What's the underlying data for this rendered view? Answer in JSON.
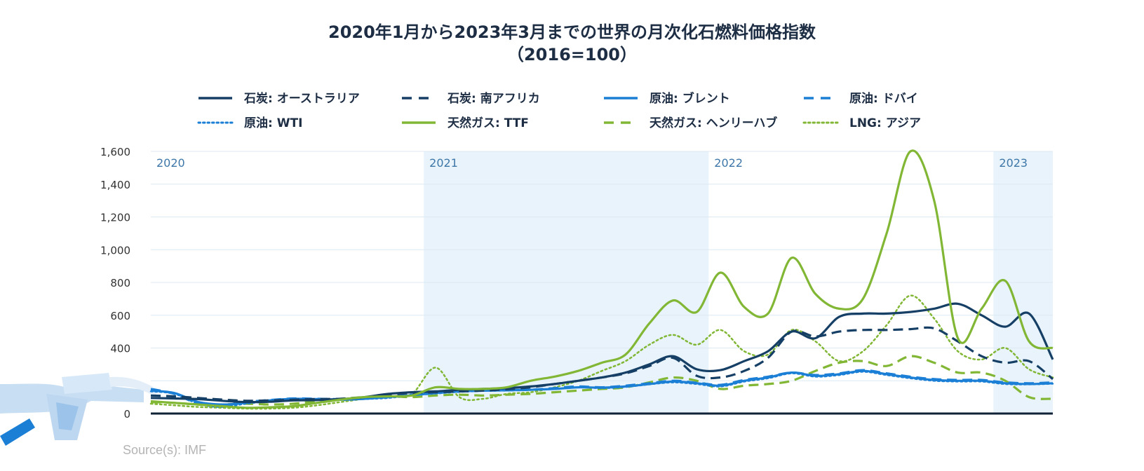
{
  "chart_data": {
    "type": "line",
    "title": "2020年1月から2023年3月までの世界の月次化石燃料価格指数",
    "subtitle": "（2016=100）",
    "source": "Source(s): IMF",
    "xlabel": "",
    "ylabel": "",
    "ylim": [
      0,
      1600
    ],
    "yticks": [
      0,
      200,
      400,
      600,
      800,
      1000,
      1200,
      1400,
      1600
    ],
    "ytick_labels": [
      "0",
      "",
      "400",
      "600",
      "800",
      "1,000",
      "1,200",
      "1,400",
      "1,600"
    ],
    "grid": true,
    "legend_position": "top",
    "year_bands": [
      {
        "label": "2020",
        "start": 0,
        "end": 12,
        "shaded": false
      },
      {
        "label": "2021",
        "start": 12,
        "end": 24,
        "shaded": true
      },
      {
        "label": "2022",
        "start": 24,
        "end": 36,
        "shaded": false
      },
      {
        "label": "2023",
        "start": 36,
        "end": 39,
        "shaded": true
      }
    ],
    "x": [
      0,
      1,
      2,
      3,
      4,
      5,
      6,
      7,
      8,
      9,
      10,
      11,
      12,
      13,
      14,
      15,
      16,
      17,
      18,
      19,
      20,
      21,
      22,
      23,
      24,
      25,
      26,
      27,
      28,
      29,
      30,
      31,
      32,
      33,
      34,
      35,
      36,
      37,
      38
    ],
    "series": [
      {
        "name": "石炭: オーストラリア",
        "color": "#163f66",
        "dash": "solid",
        "values": [
          95,
          92,
          88,
          78,
          70,
          72,
          80,
          82,
          88,
          100,
          120,
          130,
          135,
          145,
          150,
          155,
          165,
          180,
          200,
          220,
          250,
          300,
          350,
          270,
          265,
          320,
          380,
          500,
          460,
          590,
          610,
          610,
          620,
          640,
          670,
          600,
          530,
          610,
          330
        ]
      },
      {
        "name": "石炭: 南アフリカ",
        "color": "#163f66",
        "dash": "dashed",
        "values": [
          110,
          105,
          95,
          85,
          78,
          80,
          84,
          88,
          90,
          100,
          115,
          125,
          130,
          135,
          140,
          148,
          160,
          180,
          200,
          220,
          245,
          290,
          340,
          230,
          220,
          260,
          340,
          500,
          470,
          500,
          510,
          510,
          515,
          520,
          440,
          350,
          310,
          320,
          210
        ]
      },
      {
        "name": "原油: ブレント",
        "color": "#1b7fd6",
        "dash": "solid",
        "values": [
          140,
          125,
          70,
          55,
          65,
          80,
          90,
          88,
          85,
          90,
          100,
          112,
          125,
          135,
          140,
          142,
          145,
          150,
          160,
          158,
          165,
          180,
          195,
          185,
          170,
          200,
          220,
          250,
          230,
          240,
          260,
          240,
          220,
          205,
          200,
          200,
          185,
          180,
          185
        ]
      },
      {
        "name": "原油: ドバイ",
        "color": "#1b7fd6",
        "dash": "dashed",
        "values": [
          150,
          120,
          60,
          50,
          70,
          82,
          92,
          90,
          88,
          92,
          100,
          115,
          125,
          135,
          140,
          142,
          145,
          155,
          165,
          160,
          170,
          185,
          200,
          188,
          175,
          205,
          225,
          250,
          235,
          245,
          265,
          245,
          225,
          210,
          205,
          205,
          190,
          185,
          190
        ]
      },
      {
        "name": "原油: WTI",
        "color": "#1b7fd6",
        "dash": "dotted",
        "values": [
          135,
          120,
          60,
          40,
          60,
          75,
          85,
          85,
          82,
          88,
          95,
          110,
          122,
          132,
          138,
          140,
          145,
          150,
          160,
          155,
          162,
          178,
          190,
          180,
          165,
          195,
          215,
          245,
          225,
          235,
          255,
          235,
          215,
          200,
          195,
          195,
          180,
          178,
          182
        ]
      },
      {
        "name": "天然ガス: TTF",
        "color": "#82b735",
        "dash": "solid",
        "values": [
          75,
          65,
          55,
          45,
          35,
          38,
          45,
          65,
          85,
          100,
          105,
          110,
          160,
          150,
          150,
          160,
          200,
          225,
          260,
          310,
          360,
          550,
          690,
          620,
          860,
          650,
          610,
          950,
          730,
          640,
          700,
          1100,
          1600,
          1300,
          460,
          640,
          810,
          440,
          400
        ]
      },
      {
        "name": "天然ガス: ヘンリーハブ",
        "color": "#82b735",
        "dash": "dashed",
        "values": [
          70,
          65,
          55,
          55,
          60,
          55,
          60,
          75,
          90,
          100,
          105,
          100,
          110,
          115,
          110,
          115,
          120,
          130,
          140,
          150,
          160,
          190,
          220,
          200,
          150,
          170,
          180,
          200,
          260,
          310,
          320,
          290,
          350,
          310,
          250,
          250,
          200,
          100,
          90
        ]
      },
      {
        "name": "LNG: アジア",
        "color": "#82b735",
        "dash": "dotted",
        "values": [
          60,
          50,
          40,
          35,
          30,
          30,
          35,
          50,
          70,
          90,
          105,
          120,
          280,
          100,
          90,
          120,
          130,
          160,
          200,
          260,
          320,
          420,
          480,
          420,
          510,
          380,
          360,
          510,
          440,
          320,
          380,
          540,
          720,
          580,
          380,
          330,
          400,
          270,
          220
        ]
      }
    ]
  }
}
